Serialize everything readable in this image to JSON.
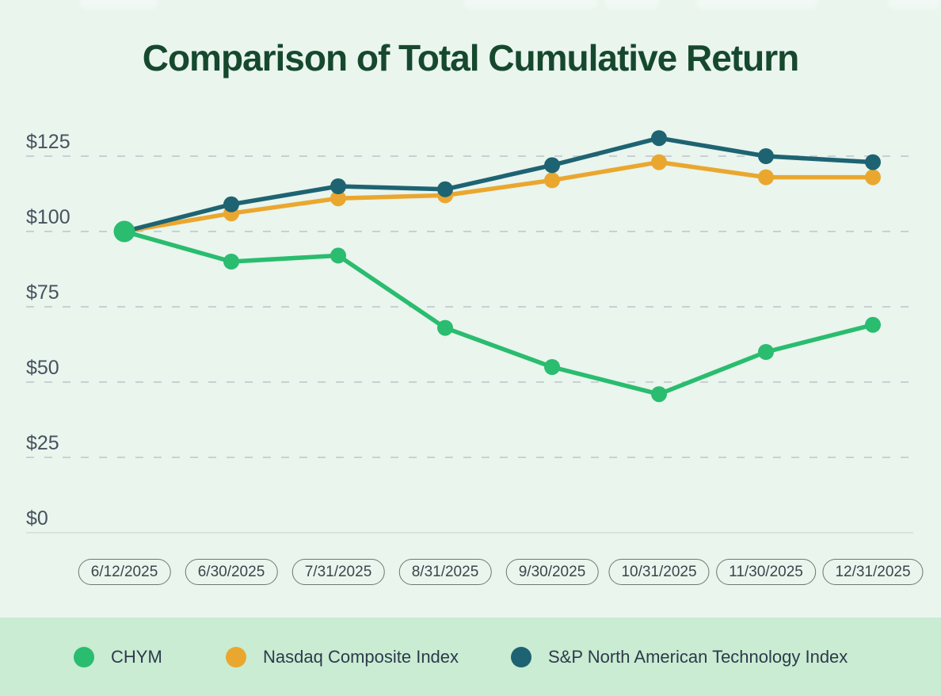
{
  "page": {
    "background_color": "#e9f5ed",
    "legend_band_color": "#c9ecd3"
  },
  "chart_data": {
    "type": "line",
    "title": "Comparison of Total Cumulative Return",
    "title_color": "#16482e",
    "categories": [
      "6/12/2025",
      "6/30/2025",
      "7/31/2025",
      "8/31/2025",
      "9/30/2025",
      "10/31/2025",
      "11/30/2025",
      "12/31/2025"
    ],
    "series": [
      {
        "name": "CHYM",
        "color": "#2abc6f",
        "values": [
          100,
          90,
          92,
          68,
          55,
          46,
          60,
          69
        ]
      },
      {
        "name": "Nasdaq Composite Index",
        "color": "#eaa72f",
        "values": [
          100,
          106,
          111,
          112,
          117,
          123,
          118,
          118
        ]
      },
      {
        "name": "S&P North American Technology Index",
        "color": "#1e6372",
        "values": [
          100,
          109,
          115,
          114,
          122,
          131,
          125,
          123
        ]
      }
    ],
    "y_ticks": {
      "labels": [
        "$125",
        "$100",
        "$75",
        "$50",
        "$25",
        "$0"
      ],
      "values": [
        125,
        100,
        75,
        50,
        25,
        0
      ]
    },
    "ylim": [
      0,
      133
    ],
    "xlabel": "",
    "ylabel": "",
    "grid": "horizontal dashed, solid baseline at $0",
    "grid_color": "#c9d0d5",
    "axis_label_color": "#47525e",
    "legend_position": "bottom",
    "x_tick_style": "rounded pill"
  }
}
